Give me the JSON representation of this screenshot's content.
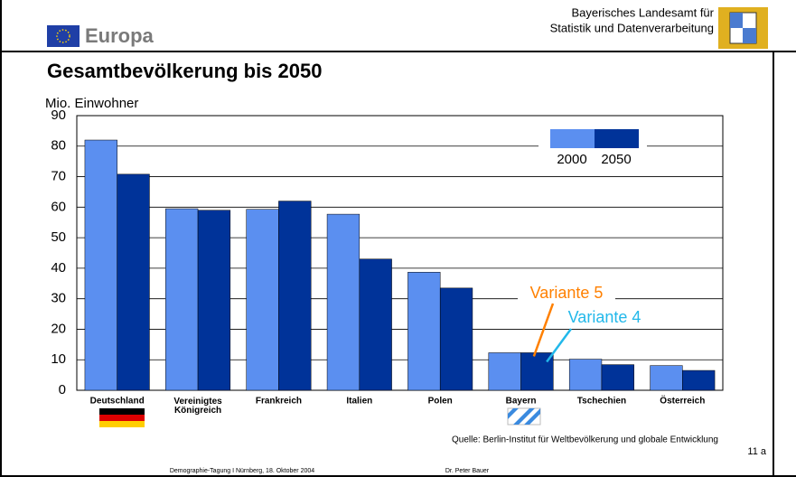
{
  "header": {
    "brand": "Europa",
    "institute_line1": "Bayerisches Landesamt für",
    "institute_line2": "Statistik und Datenverarbeitung"
  },
  "chart_data": {
    "type": "bar",
    "title": "Gesamtbevölkerung bis 2050",
    "y_label": "Mio. Einwohner",
    "categories": [
      "Deutschland",
      "Vereinigtes\nKönigreich",
      "Frankreich",
      "Italien",
      "Polen",
      "Bayern",
      "Tschechien",
      "Österreich"
    ],
    "series": [
      {
        "name": "2000",
        "color": "#5b8ff0",
        "values": [
          82.0,
          59.5,
          59.3,
          57.7,
          38.7,
          12.3,
          10.2,
          8.1
        ]
      },
      {
        "name": "2050",
        "color": "#003399",
        "values": [
          70.8,
          59.0,
          62.0,
          43.0,
          33.5,
          12.3,
          8.4,
          6.5
        ]
      }
    ],
    "ylim": [
      0,
      90
    ],
    "yticks": [
      0,
      10,
      20,
      30,
      40,
      50,
      60,
      70,
      80,
      90
    ],
    "grid": true,
    "annotations": [
      {
        "text": "Variante 5",
        "color": "#ff8000"
      },
      {
        "text": "Variante 4",
        "color": "#22b8ea"
      }
    ],
    "source": "Quelle: Berlin-Institut für Weltbevölkerung und globale Entwicklung"
  },
  "footer": {
    "page": "11 a",
    "event": "Demographie-Tagung  I  Nürnberg, 18. Oktober 2004",
    "author": "Dr. Peter Bauer"
  }
}
